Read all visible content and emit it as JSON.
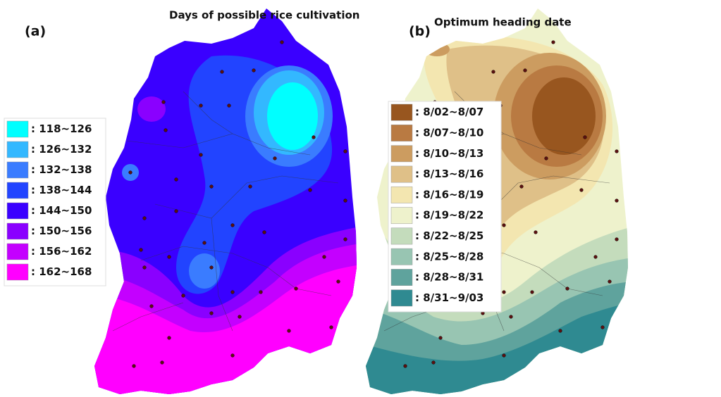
{
  "panels": [
    {
      "label": "(a)",
      "title": "Days of possible rice cultivation",
      "legend": [
        {
          "label": ": 118~126",
          "color": "#00ffff"
        },
        {
          "label": ": 126~132",
          "color": "#33b8ff"
        },
        {
          "label": ": 132~138",
          "color": "#3a7cff"
        },
        {
          "label": ": 138~144",
          "color": "#2244ff"
        },
        {
          "label": ": 144~150",
          "color": "#3a00ff"
        },
        {
          "label": ": 150~156",
          "color": "#8a00ff"
        },
        {
          "label": ": 156~162",
          "color": "#c400ff"
        },
        {
          "label": ": 162~168",
          "color": "#ff00ff"
        }
      ]
    },
    {
      "label": "(b)",
      "title": "Optimum heading date",
      "legend": [
        {
          "label": ": 8/02~8/07",
          "color": "#98561f"
        },
        {
          "label": ": 8/07~8/10",
          "color": "#b97a42"
        },
        {
          "label": ": 8/10~8/13",
          "color": "#cc9c60"
        },
        {
          "label": ": 8/13~8/16",
          "color": "#dfc088"
        },
        {
          "label": ": 8/16~8/19",
          "color": "#f3e6b0"
        },
        {
          "label": ": 8/19~8/22",
          "color": "#eef2cc"
        },
        {
          "label": ": 8/22~8/25",
          "color": "#c4dcbc"
        },
        {
          "label": ": 8/25~8/28",
          "color": "#98c5b2"
        },
        {
          "label": ": 8/28~8/31",
          "color": "#5fa39d"
        },
        {
          "label": ": 8/31~9/03",
          "color": "#2f8a91"
        }
      ]
    }
  ]
}
